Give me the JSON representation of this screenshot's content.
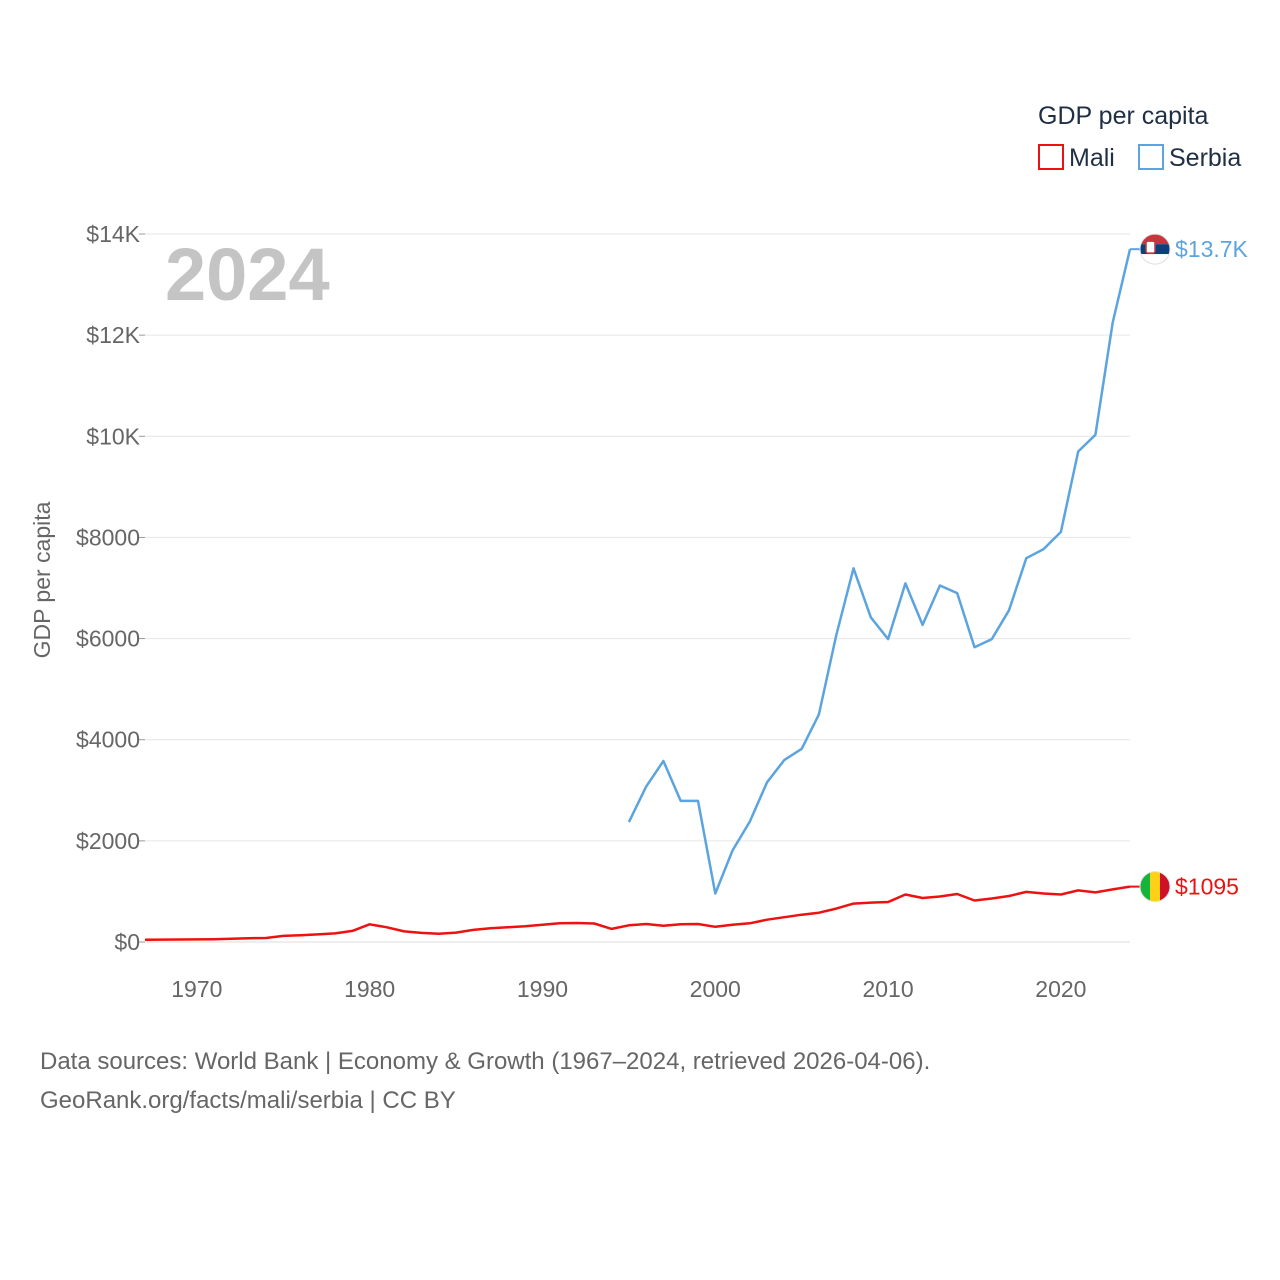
{
  "chart_data": {
    "type": "line",
    "title": "",
    "year_label": "2024",
    "xlabel": "",
    "ylabel": "GDP per capita",
    "xlim": [
      1967,
      2024
    ],
    "ylim": [
      0,
      14000
    ],
    "x_ticks": [
      1970,
      1980,
      1990,
      2000,
      2010,
      2020
    ],
    "y_ticks": [
      {
        "value": 0,
        "label": "$0"
      },
      {
        "value": 2000,
        "label": "$2000"
      },
      {
        "value": 4000,
        "label": "$4000"
      },
      {
        "value": 6000,
        "label": "$6000"
      },
      {
        "value": 8000,
        "label": "$8000"
      },
      {
        "value": 10000,
        "label": "$10K"
      },
      {
        "value": 12000,
        "label": "$12K"
      },
      {
        "value": 14000,
        "label": "$14K"
      }
    ],
    "grid": true,
    "legend": {
      "title": "GDP per capita",
      "position": "top-right"
    },
    "series": [
      {
        "name": "Mali",
        "color": "#ee1111",
        "end_label": "$1095",
        "flag": "mali-flag",
        "x": [
          1967,
          1968,
          1969,
          1970,
          1971,
          1972,
          1973,
          1974,
          1975,
          1976,
          1977,
          1978,
          1979,
          1980,
          1981,
          1982,
          1983,
          1984,
          1985,
          1986,
          1987,
          1988,
          1989,
          1990,
          1991,
          1992,
          1993,
          1994,
          1995,
          1996,
          1997,
          1998,
          1999,
          2000,
          2001,
          2002,
          2003,
          2004,
          2005,
          2006,
          2007,
          2008,
          2009,
          2010,
          2011,
          2012,
          2013,
          2014,
          2015,
          2016,
          2017,
          2018,
          2019,
          2020,
          2021,
          2022,
          2023,
          2024
        ],
        "values": [
          45,
          48,
          50,
          52,
          55,
          65,
          75,
          80,
          120,
          135,
          150,
          170,
          220,
          350,
          290,
          210,
          180,
          165,
          185,
          240,
          270,
          290,
          310,
          340,
          370,
          375,
          365,
          260,
          330,
          355,
          320,
          350,
          355,
          300,
          340,
          370,
          440,
          490,
          540,
          580,
          660,
          760,
          780,
          790,
          940,
          870,
          900,
          950,
          820,
          860,
          910,
          990,
          960,
          940,
          1020,
          980,
          1040,
          1095
        ]
      },
      {
        "name": "Serbia",
        "color": "#5ba4e0",
        "end_label": "$13.7K",
        "flag": "serbia-flag",
        "x": [
          1995,
          1996,
          1997,
          1998,
          1999,
          2000,
          2001,
          2002,
          2003,
          2004,
          2005,
          2006,
          2007,
          2008,
          2009,
          2010,
          2011,
          2012,
          2013,
          2014,
          2015,
          2016,
          2017,
          2018,
          2019,
          2020,
          2021,
          2022,
          2023,
          2024
        ],
        "values": [
          2370,
          3070,
          3580,
          2790,
          2790,
          960,
          1810,
          2380,
          3160,
          3600,
          3820,
          4500,
          6060,
          7390,
          6420,
          5990,
          7090,
          6270,
          7050,
          6900,
          5830,
          5990,
          6560,
          7590,
          7770,
          8110,
          9700,
          10030,
          12250,
          13700
        ]
      }
    ]
  },
  "footer": {
    "line1": "Data sources: World Bank | Economy & Growth (1967–2024, retrieved 2026-04-06).",
    "line2": "GeoRank.org/facts/mali/serbia | CC BY"
  }
}
